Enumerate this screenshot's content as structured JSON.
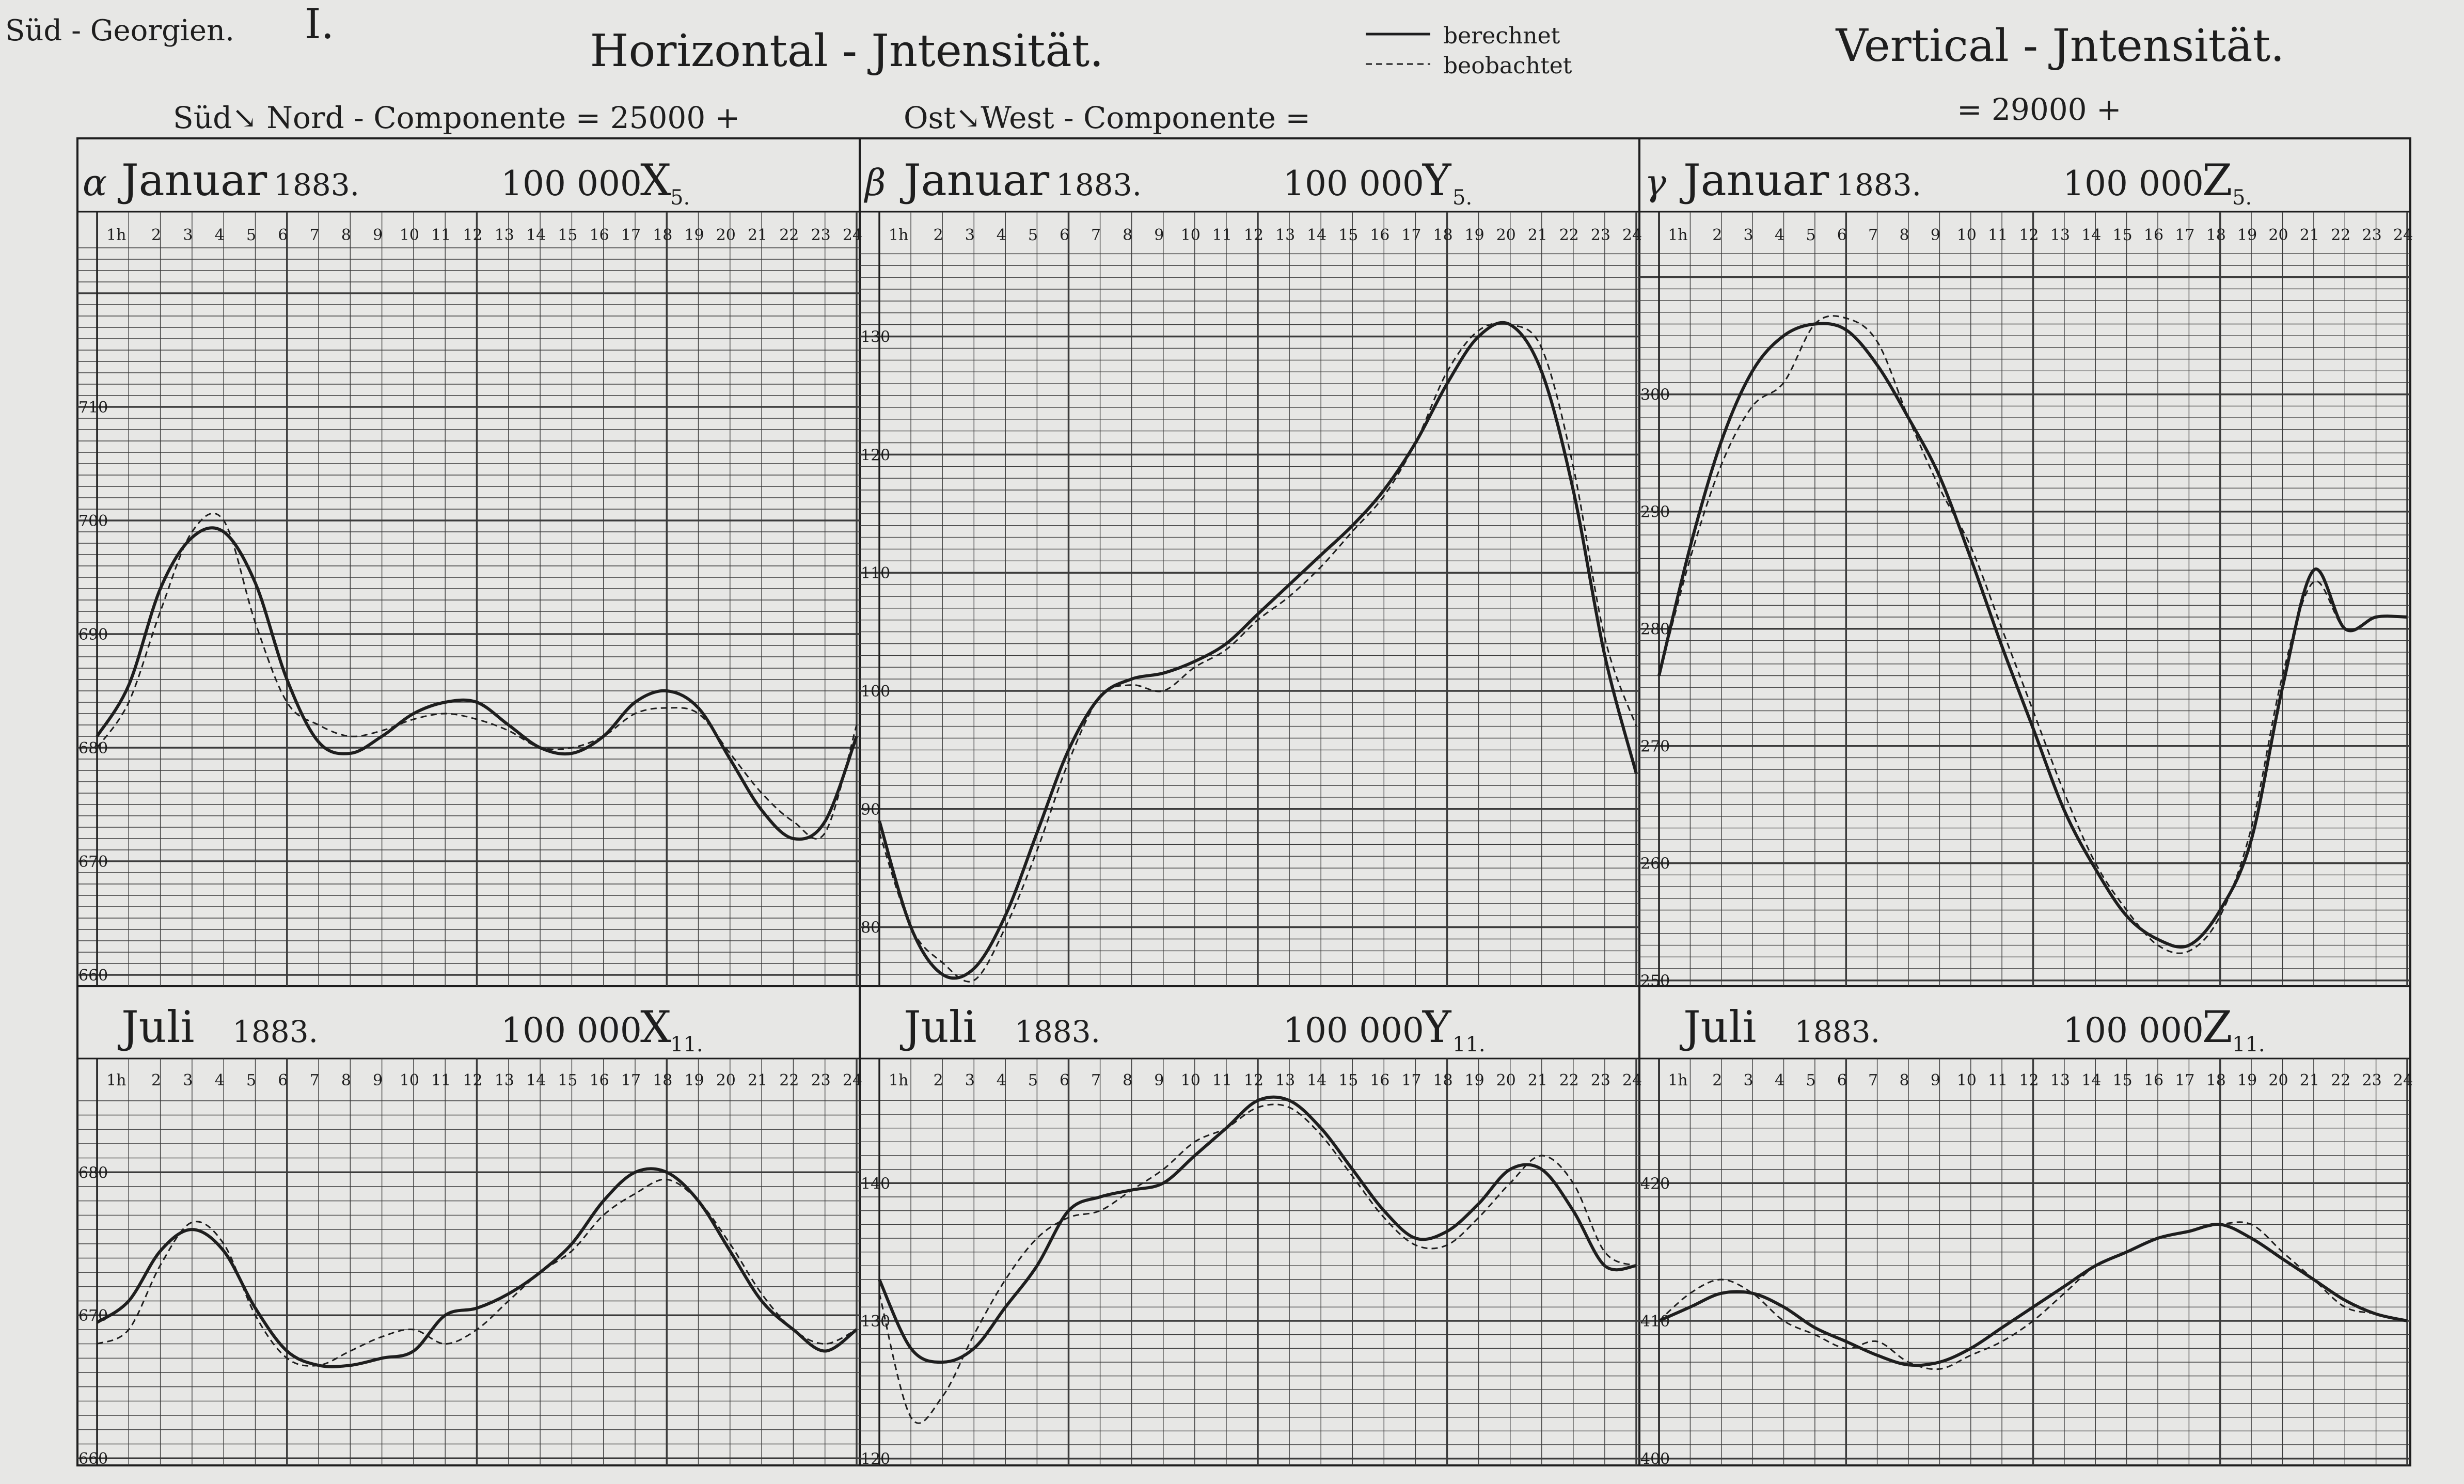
{
  "header": {
    "location": "Süd - Georgien.",
    "plate_number": "I.",
    "horizontal_title": "Horizontal - Jntensität.",
    "vertical_title": "Vertical - Jntensität.",
    "x_component": "Süd↘ Nord - Componente   =   25000 +",
    "y_component": "Ost↘West - Componente   =",
    "z_component": "= 29000 +"
  },
  "legend": {
    "computed": "berechnet",
    "observed": "beobachtet"
  },
  "colors": {
    "paper": "#e7e7e5",
    "ink": "#1e1e1e",
    "grid": "#3c3c3c"
  },
  "chart_data": [
    {
      "type": "line",
      "letter": "α",
      "month": "Januar",
      "year": "1883.",
      "factor": "100 000",
      "symbol": "X",
      "subscript": "5.",
      "x_tick_labels": [
        "1h",
        "2",
        "3",
        "4",
        "5",
        "6",
        "7",
        "8",
        "9",
        "10",
        "11",
        "12",
        "13",
        "14",
        "15",
        "16",
        "17",
        "18",
        "19",
        "20",
        "21",
        "22",
        "23",
        "24"
      ],
      "y_tick_values": [
        660,
        670,
        680,
        690,
        700,
        710
      ],
      "y_tick_labels": [
        "660",
        "670",
        "680",
        "690",
        "700",
        "710"
      ],
      "xlim": [
        0,
        24
      ],
      "ylim": [
        659,
        724
      ],
      "series": [
        {
          "name": "berechnet",
          "style": "solid",
          "x": [
            0,
            1,
            2,
            3,
            4,
            5,
            6,
            7,
            8,
            9,
            10,
            11,
            12,
            13,
            14,
            15,
            16,
            17,
            18,
            19,
            20,
            21,
            22,
            23,
            24
          ],
          "values": [
            681,
            685.5,
            694,
            698.5,
            699,
            694.5,
            686,
            680.5,
            679.5,
            681,
            683,
            684,
            684,
            682,
            680,
            679.5,
            681,
            684,
            685,
            683.5,
            679,
            674.5,
            672,
            673.5,
            681
          ]
        },
        {
          "name": "beobachtet",
          "style": "dashed",
          "x": [
            0,
            1,
            2,
            3,
            4,
            5,
            6,
            7,
            8,
            9,
            10,
            11,
            12,
            13,
            14,
            15,
            16,
            17,
            18,
            19,
            20,
            21,
            22,
            23,
            24
          ],
          "values": [
            680,
            684,
            692,
            699,
            700,
            691,
            684,
            682,
            681,
            681.5,
            682.5,
            683,
            682.5,
            681.5,
            680,
            680,
            681,
            683,
            683.5,
            683,
            679.5,
            676,
            673.5,
            672.5,
            682
          ]
        }
      ]
    },
    {
      "type": "line",
      "letter": "β",
      "month": "Januar",
      "year": "1883.",
      "factor": "100 000",
      "symbol": "Y",
      "subscript": "5.",
      "x_tick_labels": [
        "1h",
        "2",
        "3",
        "4",
        "5",
        "6",
        "7",
        "8",
        "9",
        "10",
        "11",
        "12",
        "13",
        "14",
        "15",
        "16",
        "17",
        "18",
        "19",
        "20",
        "21",
        "22",
        "23",
        "24"
      ],
      "y_tick_values": [
        80,
        90,
        100,
        110,
        120,
        130
      ],
      "y_tick_labels": [
        "80",
        "90",
        "100",
        "110",
        "120",
        "130"
      ],
      "xlim": [
        0,
        24
      ],
      "ylim": [
        75,
        137.5
      ],
      "series": [
        {
          "name": "berechnet",
          "style": "solid",
          "x": [
            0,
            1,
            2,
            3,
            4,
            5,
            6,
            7,
            8,
            9,
            10,
            11,
            12,
            13,
            14,
            15,
            16,
            17,
            18,
            19,
            20,
            21,
            22,
            23,
            24
          ],
          "values": [
            89,
            80,
            76,
            76.5,
            81,
            88,
            95,
            99.5,
            101,
            101.5,
            102.5,
            104,
            106.5,
            109,
            111.5,
            114,
            117,
            121,
            126,
            130,
            131,
            127,
            117,
            103,
            93
          ]
        },
        {
          "name": "beobachtet",
          "style": "dashed",
          "x": [
            0,
            1,
            2,
            3,
            4,
            5,
            6,
            7,
            8,
            9,
            10,
            11,
            12,
            13,
            14,
            15,
            16,
            17,
            18,
            19,
            20,
            21,
            22,
            23,
            24
          ],
          "values": [
            88,
            80,
            77,
            75.5,
            80,
            86.5,
            94,
            99.5,
            100.5,
            100,
            102,
            103.5,
            106,
            108,
            110.5,
            113.5,
            116.5,
            121,
            127,
            130.5,
            131,
            129,
            119,
            104.5,
            97
          ]
        }
      ]
    },
    {
      "type": "line",
      "letter": "γ",
      "month": "Januar",
      "year": "1883.",
      "factor": "100 000",
      "symbol": "Z",
      "subscript": "5.",
      "x_tick_labels": [
        "1h",
        "2",
        "3",
        "4",
        "5",
        "6",
        "7",
        "8",
        "9",
        "10",
        "11",
        "12",
        "13",
        "14",
        "15",
        "16",
        "17",
        "18",
        "19",
        "20",
        "21",
        "22",
        "23",
        "24"
      ],
      "y_tick_values": [
        250,
        260,
        270,
        280,
        290,
        300
      ],
      "y_tick_labels": [
        "250",
        "260",
        "270",
        "280",
        "290",
        "300"
      ],
      "xlim": [
        0,
        24
      ],
      "ylim": [
        249.5,
        312.5
      ],
      "series": [
        {
          "name": "berechnet",
          "style": "solid",
          "x": [
            0,
            1,
            2,
            3,
            4,
            5,
            6,
            7,
            8,
            9,
            10,
            11,
            12,
            13,
            14,
            15,
            16,
            17,
            18,
            19,
            20,
            21,
            22,
            23,
            24
          ],
          "values": [
            276,
            287,
            296,
            302,
            305,
            306,
            305.5,
            302.5,
            298,
            293,
            286,
            278.5,
            271.5,
            264.5,
            259.5,
            255.5,
            253.5,
            253,
            256,
            262,
            275,
            285,
            280,
            281,
            281
          ]
        },
        {
          "name": "beobachtet",
          "style": "dashed",
          "x": [
            0,
            1,
            2,
            3,
            4,
            5,
            6,
            7,
            8,
            9,
            10,
            11,
            12,
            13,
            14,
            15,
            16,
            17,
            18,
            19,
            20,
            21,
            22,
            23,
            24
          ],
          "values": [
            276,
            286,
            294,
            299,
            301,
            306,
            306.5,
            304.5,
            298,
            292,
            287,
            280,
            273,
            266,
            260,
            256,
            253,
            252.5,
            255.5,
            263,
            276,
            284,
            280,
            281,
            281
          ]
        }
      ]
    },
    {
      "type": "line",
      "letter": "",
      "month": "Juli",
      "year": "1883.",
      "factor": "100 000",
      "symbol": "X",
      "subscript": "11.",
      "x_tick_labels": [
        "1h",
        "2",
        "3",
        "4",
        "5",
        "6",
        "7",
        "8",
        "9",
        "10",
        "11",
        "12",
        "13",
        "14",
        "15",
        "16",
        "17",
        "18",
        "19",
        "20",
        "21",
        "22",
        "23",
        "24"
      ],
      "y_tick_values": [
        660,
        670,
        680
      ],
      "y_tick_labels": [
        "660",
        "670",
        "680"
      ],
      "xlim": [
        0,
        24
      ],
      "ylim": [
        659.5,
        685.5
      ],
      "series": [
        {
          "name": "berechnet",
          "style": "solid",
          "x": [
            0,
            1,
            2,
            3,
            4,
            5,
            6,
            7,
            8,
            9,
            10,
            11,
            12,
            13,
            14,
            15,
            16,
            17,
            18,
            19,
            20,
            21,
            22,
            23,
            24
          ],
          "values": [
            669.5,
            671,
            674.5,
            676,
            674.5,
            670.5,
            667.5,
            666.5,
            666.5,
            667,
            667.5,
            670,
            670.5,
            671.5,
            673,
            675,
            678,
            680,
            680,
            678,
            674.5,
            671,
            669,
            667.5,
            669
          ]
        },
        {
          "name": "beobachtet",
          "style": "dashed",
          "x": [
            0,
            1,
            2,
            3,
            4,
            5,
            6,
            7,
            8,
            9,
            10,
            11,
            12,
            13,
            14,
            15,
            16,
            17,
            18,
            19,
            20,
            21,
            22,
            23,
            24
          ],
          "values": [
            668,
            669,
            673.5,
            676.5,
            675,
            670,
            667,
            666.5,
            667.5,
            668.5,
            669,
            668,
            669,
            671,
            673,
            674.5,
            677,
            678.5,
            679.5,
            678,
            675,
            671.5,
            669,
            668,
            669
          ]
        }
      ]
    },
    {
      "type": "line",
      "letter": "",
      "month": "Juli",
      "year": "1883.",
      "factor": "100 000",
      "symbol": "Y",
      "subscript": "11.",
      "x_tick_labels": [
        "1h",
        "2",
        "3",
        "4",
        "5",
        "6",
        "7",
        "8",
        "9",
        "10",
        "11",
        "12",
        "13",
        "14",
        "15",
        "16",
        "17",
        "18",
        "19",
        "20",
        "21",
        "22",
        "23",
        "24"
      ],
      "y_tick_values": [
        120,
        130,
        140
      ],
      "y_tick_labels": [
        "120",
        "130",
        "140"
      ],
      "xlim": [
        0,
        24
      ],
      "ylim": [
        119.5,
        146.5
      ],
      "series": [
        {
          "name": "berechnet",
          "style": "solid",
          "x": [
            0,
            1,
            2,
            3,
            4,
            5,
            6,
            7,
            8,
            9,
            10,
            11,
            12,
            13,
            14,
            15,
            16,
            17,
            18,
            19,
            20,
            21,
            22,
            23,
            24
          ],
          "values": [
            133,
            128,
            127,
            128,
            131,
            134,
            138,
            139,
            139.5,
            140,
            142,
            144,
            146,
            146,
            144,
            141,
            138,
            136,
            136.5,
            138.5,
            141,
            141,
            138,
            134,
            134
          ]
        },
        {
          "name": "beobachtet",
          "style": "dashed",
          "x": [
            0,
            1,
            2,
            3,
            4,
            5,
            6,
            7,
            8,
            9,
            10,
            11,
            12,
            13,
            14,
            15,
            16,
            17,
            18,
            19,
            20,
            21,
            22,
            23,
            24
          ],
          "values": [
            132,
            123,
            124.5,
            129,
            133,
            136,
            137.5,
            138,
            139.5,
            141,
            143,
            144,
            145.5,
            145.5,
            143.5,
            140.5,
            137.5,
            135.5,
            135.5,
            137.5,
            140,
            142,
            140,
            135,
            134
          ]
        }
      ]
    },
    {
      "type": "line",
      "letter": "",
      "month": "Juli",
      "year": "1883.",
      "factor": "100 000",
      "symbol": "Z",
      "subscript": "11.",
      "x_tick_labels": [
        "1h",
        "2",
        "3",
        "4",
        "5",
        "6",
        "7",
        "8",
        "9",
        "10",
        "11",
        "12",
        "13",
        "14",
        "15",
        "16",
        "17",
        "18",
        "19",
        "20",
        "21",
        "22",
        "23",
        "24"
      ],
      "y_tick_values": [
        400,
        410,
        420
      ],
      "y_tick_labels": [
        "400",
        "410",
        "420"
      ],
      "xlim": [
        0,
        24
      ],
      "ylim": [
        399.5,
        426.5
      ],
      "series": [
        {
          "name": "berechnet",
          "style": "solid",
          "x": [
            0,
            1,
            2,
            3,
            4,
            5,
            6,
            7,
            8,
            9,
            10,
            11,
            12,
            13,
            14,
            15,
            16,
            17,
            18,
            19,
            20,
            21,
            22,
            23,
            24
          ],
          "values": [
            410,
            411,
            412,
            412,
            411,
            409.5,
            408.5,
            407.5,
            406.8,
            407,
            408,
            409.5,
            411,
            412.5,
            414,
            415,
            416,
            416.5,
            417,
            416,
            414.5,
            413,
            411.5,
            410.5,
            410
          ]
        },
        {
          "name": "beobachtet",
          "style": "dashed",
          "x": [
            0,
            1,
            2,
            3,
            4,
            5,
            6,
            7,
            8,
            9,
            10,
            11,
            12,
            13,
            14,
            15,
            16,
            17,
            18,
            19,
            20,
            21,
            22,
            23,
            24
          ],
          "values": [
            410,
            412,
            413,
            412,
            410,
            409,
            408,
            408.5,
            407,
            406.5,
            407.5,
            408.5,
            410,
            412,
            414,
            415,
            416,
            416.5,
            417,
            417,
            415,
            413,
            411,
            410.5,
            410
          ]
        }
      ]
    }
  ]
}
